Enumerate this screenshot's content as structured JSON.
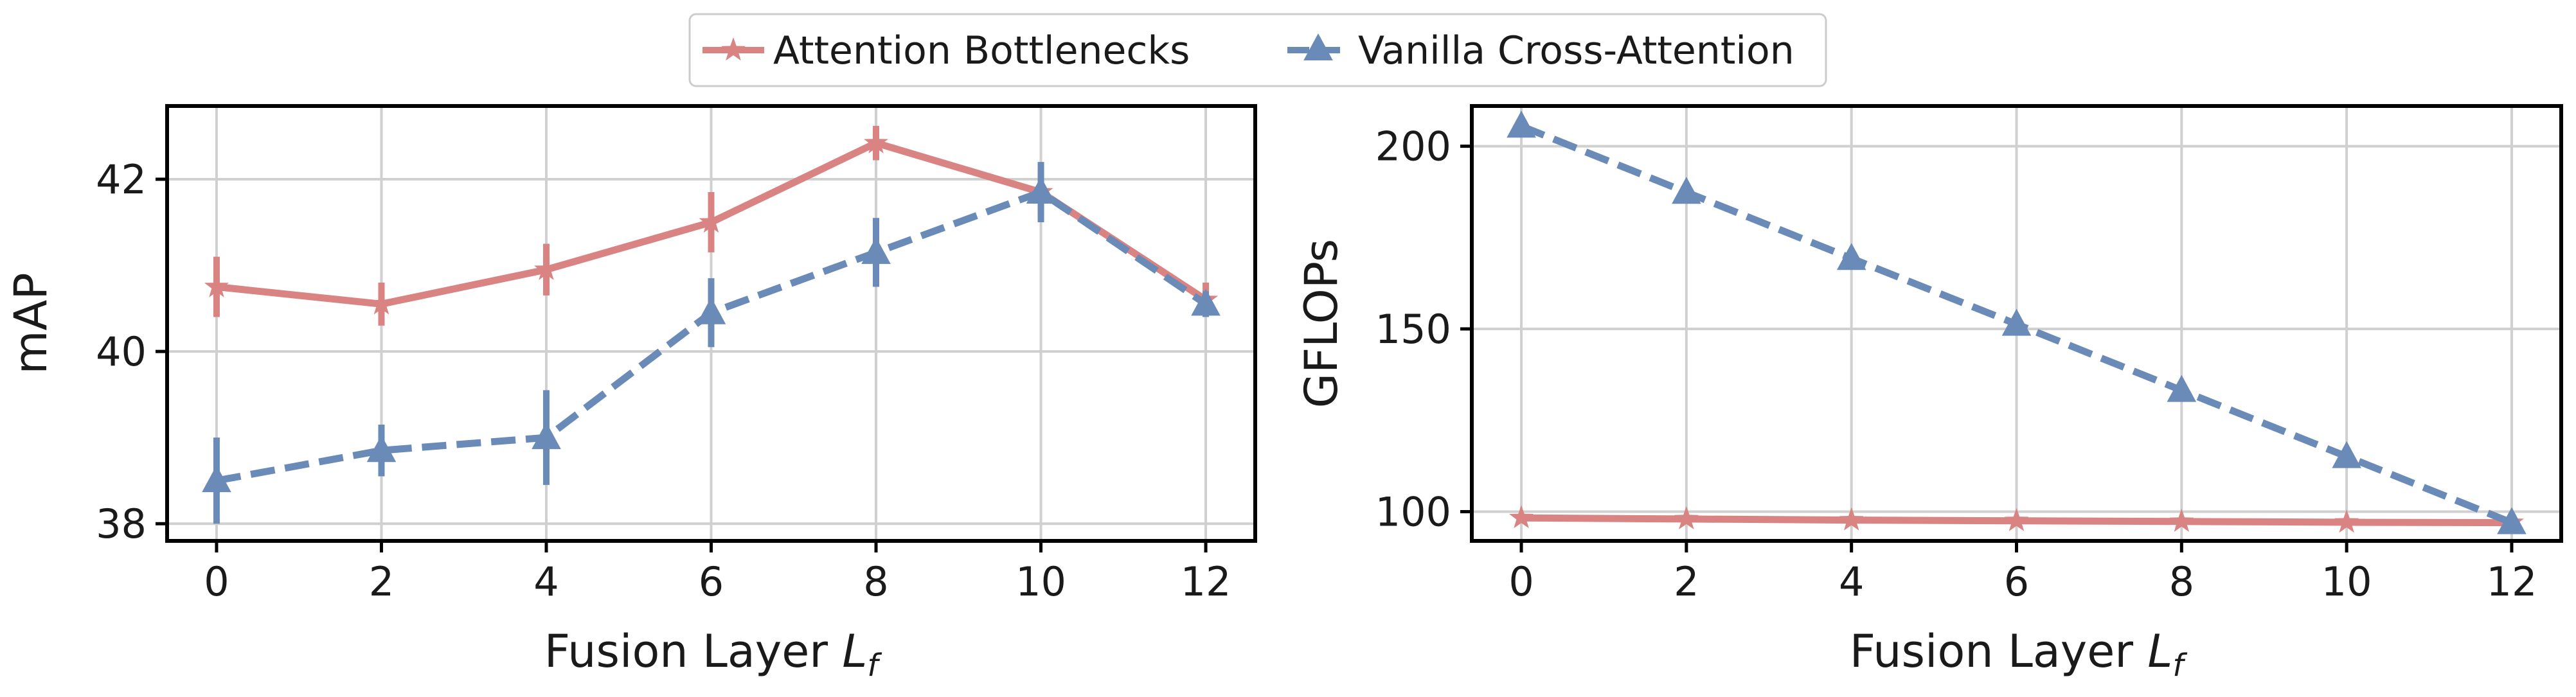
{
  "legend": {
    "items": [
      {
        "label": "Attention Bottlenecks",
        "color": "#d98383",
        "marker": "star",
        "dash": "solid"
      },
      {
        "label": "Vanilla Cross-Attention",
        "color": "#6a8ab8",
        "marker": "triangle",
        "dash": "dashed"
      }
    ],
    "placement": "top-center"
  },
  "chart_data": [
    {
      "type": "line",
      "title": "",
      "xlabel": "Fusion Layer",
      "xlabel_symbol": "L",
      "xlabel_subscript": "f",
      "ylabel": "mAP",
      "xlim": [
        -0.6,
        12.6
      ],
      "ylim": [
        37.8,
        42.85
      ],
      "xticks": [
        0,
        2,
        4,
        6,
        8,
        10,
        12
      ],
      "yticks": [
        38,
        40,
        42
      ],
      "grid": true,
      "x": [
        0,
        2,
        4,
        6,
        8,
        10,
        12
      ],
      "series": [
        {
          "name": "Attention Bottlenecks",
          "values": [
            40.75,
            40.55,
            40.95,
            41.5,
            42.42,
            41.85,
            40.6
          ],
          "errors": [
            0.35,
            0.25,
            0.3,
            0.35,
            0.2,
            0.25,
            0.2
          ]
        },
        {
          "name": "Vanilla Cross-Attention",
          "values": [
            38.5,
            38.85,
            39.0,
            40.45,
            41.15,
            41.85,
            40.55
          ],
          "errors": [
            0.5,
            0.3,
            0.55,
            0.4,
            0.4,
            0.35,
            0.15
          ]
        }
      ]
    },
    {
      "type": "line",
      "title": "",
      "xlabel": "Fusion Layer",
      "xlabel_symbol": "L",
      "xlabel_subscript": "f",
      "ylabel": "GFLOPs",
      "xlim": [
        -0.6,
        12.6
      ],
      "ylim": [
        92,
        211
      ],
      "xticks": [
        0,
        2,
        4,
        6,
        8,
        10,
        12
      ],
      "yticks": [
        100,
        150,
        200
      ],
      "grid": true,
      "x": [
        0,
        2,
        4,
        6,
        8,
        10,
        12
      ],
      "series": [
        {
          "name": "Attention Bottlenecks",
          "values": [
            98.3,
            98.0,
            97.7,
            97.5,
            97.3,
            97.1,
            97.0
          ],
          "errors": [
            0,
            0,
            0,
            0,
            0,
            0,
            0
          ]
        },
        {
          "name": "Vanilla Cross-Attention",
          "values": [
            205.5,
            187.4,
            169.3,
            151.3,
            133.2,
            115.1,
            97.0
          ],
          "errors": [
            0,
            0,
            0,
            0,
            0,
            0,
            0
          ]
        }
      ]
    }
  ]
}
